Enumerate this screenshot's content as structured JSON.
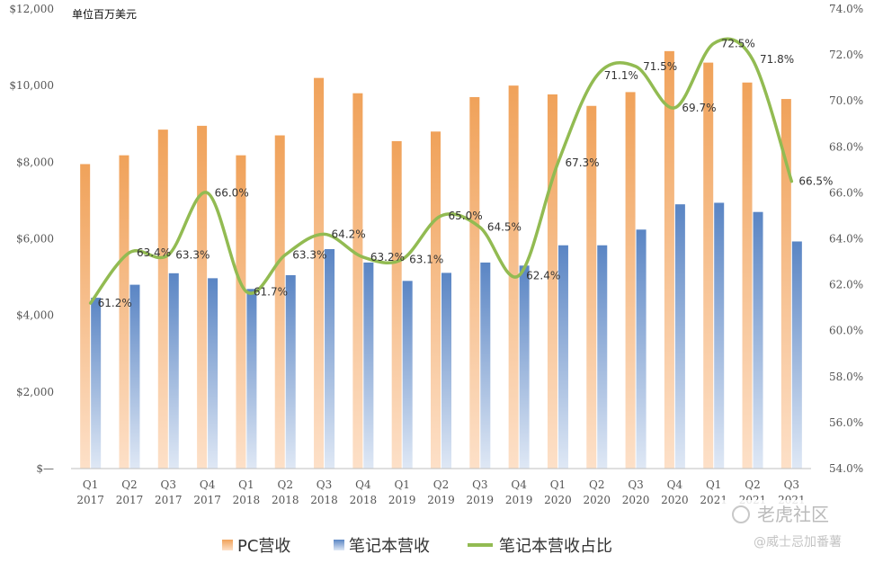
{
  "chart_data": {
    "type": "bar",
    "unit_label": "单位百万美元",
    "categories": [
      [
        "Q1",
        "2017"
      ],
      [
        "Q2",
        "2017"
      ],
      [
        "Q3",
        "2017"
      ],
      [
        "Q4",
        "2017"
      ],
      [
        "Q1",
        "2018"
      ],
      [
        "Q2",
        "2018"
      ],
      [
        "Q3",
        "2018"
      ],
      [
        "Q4",
        "2018"
      ],
      [
        "Q1",
        "2019"
      ],
      [
        "Q2",
        "2019"
      ],
      [
        "Q3",
        "2019"
      ],
      [
        "Q4",
        "2019"
      ],
      [
        "Q1",
        "2020"
      ],
      [
        "Q2",
        "2020"
      ],
      [
        "Q3",
        "2020"
      ],
      [
        "Q4",
        "2020"
      ],
      [
        "Q1",
        "2021"
      ],
      [
        "Q2",
        "2021"
      ],
      [
        "Q3",
        "2021"
      ]
    ],
    "y_left": {
      "min": 0,
      "max": 12000,
      "ticks": [
        0,
        2000,
        4000,
        6000,
        8000,
        10000,
        12000
      ],
      "tick_labels": [
        "$—",
        "$2,000",
        "$4,000",
        "$6,000",
        "$8,000",
        "$10,000",
        "$12,000"
      ]
    },
    "y_right": {
      "min": 54,
      "max": 74,
      "ticks": [
        54,
        56,
        58,
        60,
        62,
        64,
        66,
        68,
        70,
        72,
        74
      ],
      "tick_labels": [
        "54.0%",
        "56.0%",
        "58.0%",
        "60.0%",
        "62.0%",
        "64.0%",
        "66.0%",
        "68.0%",
        "70.0%",
        "72.0%",
        "74.0%"
      ]
    },
    "series": [
      {
        "name": "PC营收",
        "kind": "bar",
        "axis": "left",
        "color_top": "#f0a25a",
        "color_bottom": "#fde0c8",
        "values": [
          7950,
          8180,
          8850,
          8950,
          8180,
          8700,
          10200,
          9800,
          8550,
          8800,
          9700,
          10000,
          9770,
          9470,
          9830,
          10900,
          10600,
          10080,
          9650
        ]
      },
      {
        "name": "笔记本营收",
        "kind": "bar",
        "axis": "left",
        "color_top": "#5a85c4",
        "color_bottom": "#dfe8f5",
        "values": [
          4460,
          4800,
          5100,
          4970,
          4690,
          5050,
          5730,
          5380,
          4900,
          5110,
          5380,
          5300,
          5830,
          5830,
          6240,
          6900,
          6940,
          6700,
          5930
        ]
      },
      {
        "name": "笔记本营收占比",
        "kind": "line",
        "axis": "right",
        "color": "#92bb52",
        "values": [
          61.2,
          63.4,
          63.3,
          66.0,
          61.7,
          63.3,
          64.2,
          63.2,
          63.1,
          65.0,
          64.5,
          62.4,
          67.3,
          71.1,
          71.5,
          69.7,
          72.5,
          71.8,
          66.5
        ],
        "labels": [
          "61.2%",
          "63.4%",
          "63.3%",
          "66.0%",
          "61.7%",
          "63.3%",
          "64.2%",
          "63.2%",
          "63.1%",
          "65.0%",
          "64.5%",
          "62.4%",
          "67.3%",
          "71.1%",
          "71.5%",
          "69.7%",
          "72.5%",
          "71.8%",
          "66.5%"
        ]
      }
    ],
    "legend": [
      "PC营收",
      "笔记本营收",
      "笔记本营收占比"
    ],
    "legend_position": "bottom",
    "grid": false
  },
  "watermark": {
    "brand": "老虎社区",
    "author": "@威士忌加番薯"
  }
}
